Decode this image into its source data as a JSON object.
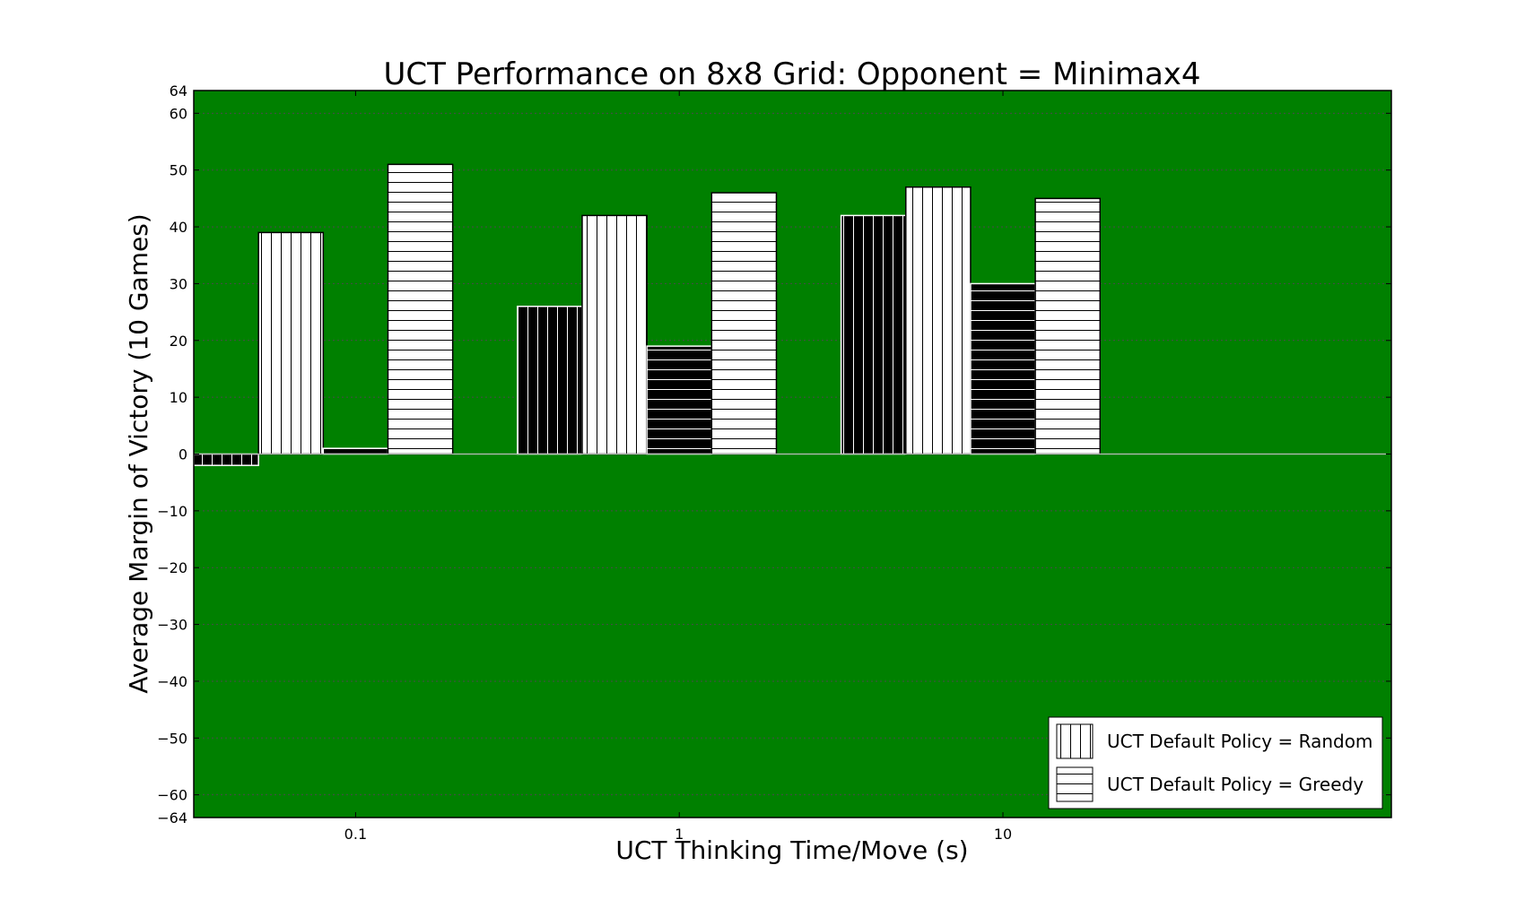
{
  "chart_data": {
    "type": "bar",
    "title": "UCT Performance on 8x8 Grid: Opponent = Minimax4",
    "xlabel": "UCT Thinking Time/Move (s)",
    "ylabel": "Average Margin of Victory (10 Games)",
    "categories": [
      "0.1",
      "1",
      "10"
    ],
    "ylim": [
      -64,
      64
    ],
    "yticks": [
      -64,
      -60,
      -50,
      -40,
      -30,
      -20,
      -10,
      0,
      10,
      20,
      30,
      40,
      50,
      60,
      64
    ],
    "ytick_labels": [
      "−64",
      "−60",
      "−50",
      "−40",
      "−30",
      "−20",
      "−10",
      "0",
      "10",
      "20",
      "30",
      "40",
      "50",
      "60",
      "64"
    ],
    "grid": "horizontal dotted",
    "background_color": "#008000",
    "series": [
      {
        "values": [
          -2,
          26,
          42
        ],
        "fill": "#000000",
        "hatch": "vertical",
        "hatch_color": "#ffffff"
      },
      {
        "values": [
          39,
          42,
          47
        ],
        "fill": "#ffffff",
        "hatch": "vertical",
        "hatch_color": "#000000"
      },
      {
        "values": [
          1,
          19,
          30
        ],
        "fill": "#000000",
        "hatch": "horizontal",
        "hatch_color": "#ffffff"
      },
      {
        "values": [
          51,
          46,
          45
        ],
        "fill": "#ffffff",
        "hatch": "horizontal",
        "hatch_color": "#000000"
      }
    ],
    "legend": {
      "placement": "lower-right",
      "entries": [
        {
          "label": "UCT Default Policy = Random",
          "hatch": "vertical"
        },
        {
          "label": "UCT Default Policy = Greedy",
          "hatch": "horizontal"
        }
      ]
    }
  }
}
